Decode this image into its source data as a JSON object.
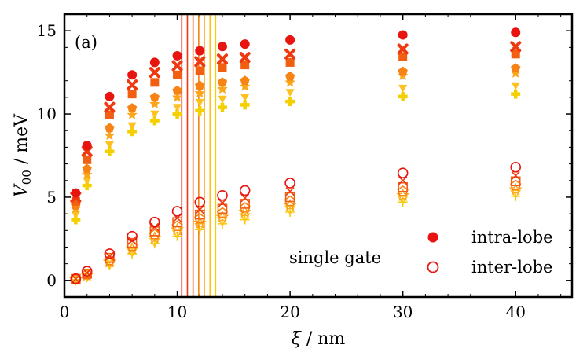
{
  "chart_data": {
    "type": "scatter",
    "panel_label": "(a)",
    "annotation": "single gate",
    "xlabel": {
      "symbol": "ξ",
      "unit": " / nm"
    },
    "ylabel": {
      "symbol": "V",
      "subscript": "00",
      "unit": " / meV"
    },
    "xlim": [
      0,
      45
    ],
    "ylim": [
      -1,
      16
    ],
    "xticks": [
      0,
      10,
      20,
      30,
      40
    ],
    "yticks": [
      0,
      5,
      10,
      15
    ],
    "legend": [
      {
        "label": "intra-lobe",
        "style": "filled"
      },
      {
        "label": "inter-lobe",
        "style": "open"
      }
    ],
    "x": [
      1,
      2,
      4,
      6,
      8,
      10,
      12,
      14,
      16,
      20,
      30,
      40
    ],
    "vertical_lines": [
      {
        "x": 10.4,
        "color": "#e8140f"
      },
      {
        "x": 10.9,
        "color": "#ed3a10"
      },
      {
        "x": 11.4,
        "color": "#f25f12"
      },
      {
        "x": 11.9,
        "color": "#f78314"
      },
      {
        "x": 12.4,
        "color": "#fba51b"
      },
      {
        "x": 12.9,
        "color": "#fdc21f"
      },
      {
        "x": 13.4,
        "color": "#f5d000"
      }
    ],
    "series": [
      {
        "name": "intra-lobe 1",
        "marker": "circle",
        "color": "#e8140f",
        "filled": true,
        "values": [
          5.25,
          8.1,
          11.05,
          12.35,
          13.1,
          13.5,
          13.8,
          14.05,
          14.2,
          14.45,
          14.75,
          14.9
        ]
      },
      {
        "name": "intra-lobe 2",
        "marker": "x",
        "color": "#ed3a10",
        "filled": true,
        "values": [
          5.0,
          7.75,
          10.4,
          11.75,
          12.5,
          12.9,
          13.15,
          13.3,
          13.4,
          13.6,
          13.9,
          14.05
        ]
      },
      {
        "name": "intra-lobe 3",
        "marker": "square",
        "color": "#f25f12",
        "filled": true,
        "values": [
          4.75,
          7.25,
          9.95,
          11.2,
          11.9,
          12.35,
          12.6,
          12.8,
          12.95,
          13.1,
          13.45,
          13.6
        ]
      },
      {
        "name": "intra-lobe 4",
        "marker": "pentagon",
        "color": "#f78314",
        "filled": true,
        "values": [
          4.5,
          6.7,
          9.15,
          10.35,
          11.0,
          11.4,
          11.7,
          11.9,
          12.0,
          12.25,
          12.55,
          12.75
        ]
      },
      {
        "name": "intra-lobe 5",
        "marker": "star",
        "color": "#fba51b",
        "filled": true,
        "values": [
          4.3,
          6.35,
          8.7,
          9.95,
          10.6,
          11.0,
          11.25,
          11.5,
          11.65,
          11.9,
          12.3,
          12.45
        ]
      },
      {
        "name": "intra-lobe 6",
        "marker": "triangle-down",
        "color": "#fdc21f",
        "filled": true,
        "values": [
          4.0,
          6.05,
          8.2,
          9.35,
          10.05,
          10.45,
          10.75,
          10.95,
          11.05,
          11.35,
          11.6,
          11.75
        ]
      },
      {
        "name": "intra-lobe 7",
        "marker": "plus",
        "color": "#f5d000",
        "filled": true,
        "values": [
          3.65,
          5.7,
          7.75,
          8.95,
          9.6,
          10.0,
          10.2,
          10.4,
          10.55,
          10.75,
          11.05,
          11.2
        ]
      },
      {
        "name": "inter-lobe 1",
        "marker": "circle",
        "color": "#e8140f",
        "filled": false,
        "values": [
          0.1,
          0.55,
          1.6,
          2.65,
          3.5,
          4.15,
          4.7,
          5.1,
          5.4,
          5.85,
          6.45,
          6.8
        ]
      },
      {
        "name": "inter-lobe 2",
        "marker": "x",
        "color": "#ed3a10",
        "filled": false,
        "values": [
          0.09,
          0.45,
          1.45,
          2.4,
          3.2,
          3.75,
          4.25,
          4.65,
          4.95,
          5.35,
          6.0,
          6.3
        ]
      },
      {
        "name": "inter-lobe 3",
        "marker": "square",
        "color": "#f25f12",
        "filled": false,
        "values": [
          0.08,
          0.4,
          1.35,
          2.25,
          2.95,
          3.5,
          3.95,
          4.3,
          4.6,
          5.0,
          5.6,
          5.95
        ]
      },
      {
        "name": "inter-lobe 4",
        "marker": "pentagon",
        "color": "#f78314",
        "filled": false,
        "values": [
          0.07,
          0.35,
          1.2,
          2.05,
          2.75,
          3.25,
          3.7,
          4.05,
          4.35,
          4.75,
          5.35,
          5.7
        ]
      },
      {
        "name": "inter-lobe 5",
        "marker": "star",
        "color": "#fba51b",
        "filled": false,
        "values": [
          0.06,
          0.3,
          1.1,
          1.9,
          2.55,
          3.05,
          3.45,
          3.8,
          4.1,
          4.5,
          5.1,
          5.45
        ]
      },
      {
        "name": "inter-lobe 6",
        "marker": "triangle-down",
        "color": "#fdc21f",
        "filled": false,
        "values": [
          0.05,
          0.25,
          1.0,
          1.75,
          2.35,
          2.85,
          3.25,
          3.6,
          3.85,
          4.3,
          4.9,
          5.25
        ]
      },
      {
        "name": "inter-lobe 7",
        "marker": "plus",
        "color": "#f5d000",
        "filled": false,
        "values": [
          0.04,
          0.2,
          0.9,
          1.6,
          2.2,
          2.65,
          3.05,
          3.4,
          3.65,
          4.1,
          4.7,
          5.05
        ]
      }
    ]
  }
}
